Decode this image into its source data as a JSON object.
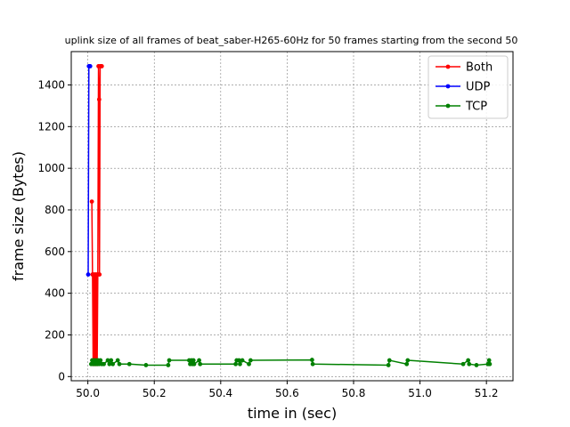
{
  "chart_data": {
    "type": "line",
    "title": "uplink size of all frames of beat_saber-H265-60Hz for 50 frames starting from the second 50",
    "xlabel": "time in (sec)",
    "ylabel": "frame size (Bytes)",
    "xlim": [
      49.95,
      51.28
    ],
    "ylim": [
      -20,
      1560
    ],
    "xticks": [
      50.0,
      50.2,
      50.4,
      50.6,
      50.8,
      51.0,
      51.2
    ],
    "xtick_labels": [
      "50.0",
      "50.2",
      "50.4",
      "50.6",
      "50.8",
      "51.0",
      "51.2"
    ],
    "yticks": [
      0,
      200,
      400,
      600,
      800,
      1000,
      1200,
      1400
    ],
    "ytick_labels": [
      "0",
      "200",
      "400",
      "600",
      "800",
      "1000",
      "1200",
      "1400"
    ],
    "grid": true,
    "legend_position": "top-right",
    "series": [
      {
        "name": "Both",
        "color": "#ff0000",
        "points": [
          [
            50.012,
            840
          ],
          [
            50.014,
            490
          ],
          [
            50.016,
            60
          ],
          [
            50.018,
            490
          ],
          [
            50.02,
            60
          ],
          [
            50.022,
            490
          ],
          [
            50.024,
            60
          ],
          [
            50.026,
            490
          ],
          [
            50.028,
            60
          ],
          [
            50.03,
            490
          ],
          [
            50.032,
            1490
          ],
          [
            50.034,
            1330
          ],
          [
            50.035,
            490
          ],
          [
            50.037,
            1490
          ],
          [
            50.04,
            1490
          ],
          [
            50.042,
            1490
          ]
        ]
      },
      {
        "name": "UDP",
        "color": "#0000ff",
        "points": [
          [
            50.001,
            490
          ],
          [
            50.003,
            1490
          ],
          [
            50.005,
            1490
          ],
          [
            50.007,
            1490
          ]
        ]
      },
      {
        "name": "TCP",
        "color": "#008000",
        "points": [
          [
            50.01,
            60
          ],
          [
            50.013,
            78
          ],
          [
            50.016,
            60
          ],
          [
            50.019,
            78
          ],
          [
            50.022,
            60
          ],
          [
            50.025,
            78
          ],
          [
            50.028,
            60
          ],
          [
            50.031,
            78
          ],
          [
            50.034,
            60
          ],
          [
            50.038,
            78
          ],
          [
            50.042,
            60
          ],
          [
            50.048,
            60
          ],
          [
            50.06,
            78
          ],
          [
            50.065,
            60
          ],
          [
            50.07,
            78
          ],
          [
            50.075,
            60
          ],
          [
            50.09,
            78
          ],
          [
            50.095,
            60
          ],
          [
            50.125,
            60
          ],
          [
            50.175,
            55
          ],
          [
            50.242,
            55
          ],
          [
            50.245,
            78
          ],
          [
            50.305,
            78
          ],
          [
            50.308,
            60
          ],
          [
            50.312,
            78
          ],
          [
            50.315,
            60
          ],
          [
            50.318,
            78
          ],
          [
            50.32,
            60
          ],
          [
            50.335,
            78
          ],
          [
            50.338,
            60
          ],
          [
            50.445,
            60
          ],
          [
            50.448,
            78
          ],
          [
            50.455,
            78
          ],
          [
            50.458,
            60
          ],
          [
            50.465,
            78
          ],
          [
            50.485,
            60
          ],
          [
            50.49,
            78
          ],
          [
            50.675,
            80
          ],
          [
            50.677,
            60
          ],
          [
            50.905,
            55
          ],
          [
            50.908,
            78
          ],
          [
            50.96,
            60
          ],
          [
            50.963,
            78
          ],
          [
            51.13,
            60
          ],
          [
            51.145,
            78
          ],
          [
            51.148,
            60
          ],
          [
            51.17,
            55
          ],
          [
            51.205,
            60
          ],
          [
            51.208,
            78
          ],
          [
            51.21,
            60
          ]
        ]
      }
    ]
  }
}
